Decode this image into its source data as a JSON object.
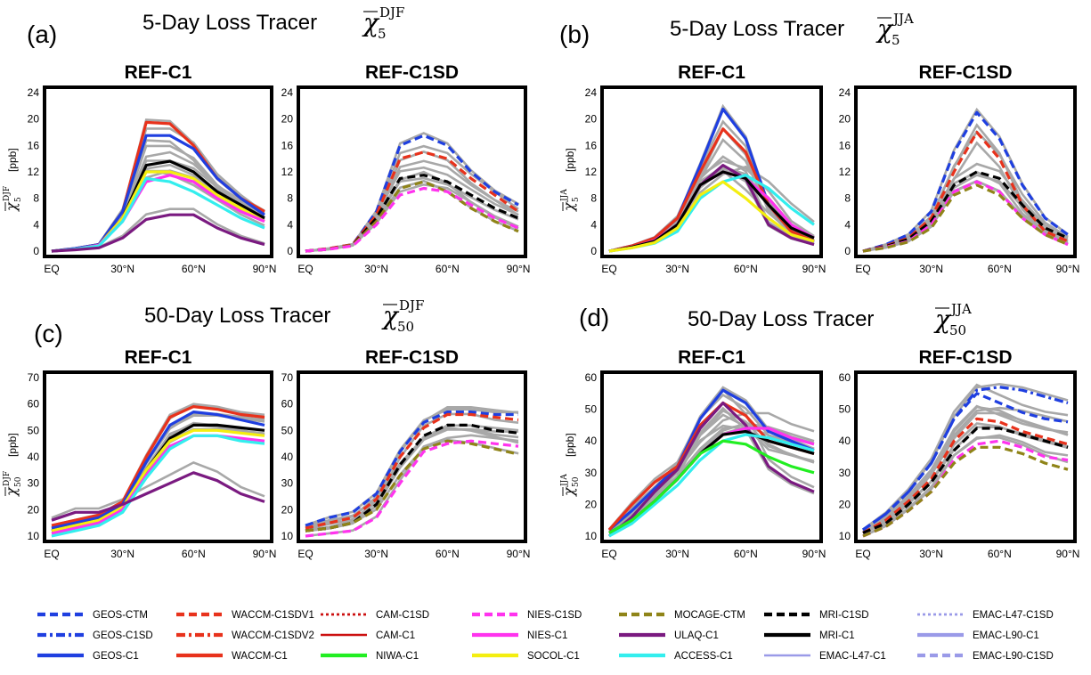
{
  "x_ticks": [
    "EQ",
    "30°N",
    "60°N",
    "90°N"
  ],
  "unit_label": "[ppb]",
  "panels": [
    {
      "letter": "(a)",
      "title_text": "5-Day Loss Tracer",
      "symbol": {
        "base": "χ",
        "sub": "5",
        "sup": "DJF"
      },
      "subpanels": [
        {
          "title": "REF-C1",
          "ylim": [
            0,
            24
          ],
          "yticks": [
            "0",
            "4",
            "8",
            "12",
            "16",
            "20",
            "24"
          ],
          "show_ylabel": true
        },
        {
          "title": "REF-C1SD",
          "ylim": [
            0,
            24
          ],
          "yticks": [
            "0",
            "4",
            "8",
            "12",
            "16",
            "20",
            "24"
          ],
          "show_ylabel": false
        }
      ]
    },
    {
      "letter": "(b)",
      "title_text": "5-Day Loss Tracer",
      "symbol": {
        "base": "χ",
        "sub": "5",
        "sup": "JJA"
      },
      "subpanels": [
        {
          "title": "REF-C1",
          "ylim": [
            0,
            24
          ],
          "yticks": [
            "0",
            "4",
            "8",
            "12",
            "16",
            "20",
            "24"
          ],
          "show_ylabel": true
        },
        {
          "title": "REF-C1SD",
          "ylim": [
            0,
            24
          ],
          "yticks": [
            "0",
            "4",
            "8",
            "12",
            "16",
            "20",
            "24"
          ],
          "show_ylabel": false
        }
      ]
    },
    {
      "letter": "(c)",
      "title_text": "50-Day Loss Tracer",
      "symbol": {
        "base": "χ",
        "sub": "50",
        "sup": "DJF"
      },
      "subpanels": [
        {
          "title": "REF-C1",
          "ylim": [
            10,
            70
          ],
          "yticks": [
            "10",
            "20",
            "30",
            "40",
            "50",
            "60",
            "70"
          ],
          "show_ylabel": true
        },
        {
          "title": "REF-C1SD",
          "ylim": [
            10,
            70
          ],
          "yticks": [
            "10",
            "20",
            "30",
            "40",
            "50",
            "60",
            "70"
          ],
          "show_ylabel": false
        }
      ]
    },
    {
      "letter": "(d)",
      "title_text": "50-Day Loss Tracer",
      "symbol": {
        "base": "χ",
        "sub": "50",
        "sup": "JJA"
      },
      "subpanels": [
        {
          "title": "REF-C1",
          "ylim": [
            10,
            60
          ],
          "yticks": [
            "10",
            "20",
            "30",
            "40",
            "50",
            "60"
          ],
          "show_ylabel": true
        },
        {
          "title": "REF-C1SD",
          "ylim": [
            10,
            60
          ],
          "yticks": [
            "10",
            "20",
            "30",
            "40",
            "50",
            "60"
          ],
          "show_ylabel": false
        }
      ]
    }
  ],
  "legend": [
    {
      "name": "GEOS-CTM",
      "color": "#1f3fe0",
      "style": "dash"
    },
    {
      "name": "GEOS-C1SD",
      "color": "#1f3fe0",
      "style": "dashdot"
    },
    {
      "name": "GEOS-C1",
      "color": "#1f3fe0",
      "style": "solid"
    },
    {
      "name": "WACCM-C1SDV1",
      "color": "#e8321c",
      "style": "dash"
    },
    {
      "name": "WACCM-C1SDV2",
      "color": "#e8321c",
      "style": "dashdot"
    },
    {
      "name": "WACCM-C1",
      "color": "#e8321c",
      "style": "solid"
    },
    {
      "name": "CAM-C1SD",
      "color": "#cc1010",
      "style": "dot"
    },
    {
      "name": "CAM-C1",
      "color": "#cc1010",
      "style": "thin"
    },
    {
      "name": "NIWA-C1",
      "color": "#22ee22",
      "style": "solid"
    },
    {
      "name": "NIES-C1SD",
      "color": "#ff33ee",
      "style": "dash"
    },
    {
      "name": "NIES-C1",
      "color": "#ff33ee",
      "style": "solid"
    },
    {
      "name": "SOCOL-C1",
      "color": "#f4ee10",
      "style": "solid"
    },
    {
      "name": "MOCAGE-CTM",
      "color": "#8f8418",
      "style": "dash"
    },
    {
      "name": "ULAQ-C1",
      "color": "#7a1a80",
      "style": "solid"
    },
    {
      "name": "ACCESS-C1",
      "color": "#33eeee",
      "style": "solid"
    },
    {
      "name": "MRI-C1SD",
      "color": "#000000",
      "style": "dash"
    },
    {
      "name": "MRI-C1",
      "color": "#000000",
      "style": "solid"
    },
    {
      "name": "EMAC-L47-C1",
      "color": "#9a9ae8",
      "style": "thin"
    },
    {
      "name": "EMAC-L47-C1SD",
      "color": "#9a9ae8",
      "style": "dot"
    },
    {
      "name": "EMAC-L90-C1",
      "color": "#9a9ae8",
      "style": "solid"
    },
    {
      "name": "EMAC-L90-C1SD",
      "color": "#9a9ae8",
      "style": "dash"
    }
  ],
  "chart_data": [
    {
      "type": "line",
      "title": "REF-C1",
      "xlabel": "",
      "ylabel": "[ppb]",
      "x": [
        0,
        10,
        20,
        30,
        40,
        50,
        60,
        70,
        80,
        90
      ],
      "ylim": [
        0,
        24
      ],
      "series": [
        {
          "name": "WACCM-C1",
          "values": [
            0,
            0.4,
            1,
            6,
            19.5,
            19.3,
            16,
            11,
            8,
            6
          ]
        },
        {
          "name": "GEOS-C1",
          "values": [
            0,
            0.4,
            1,
            6,
            17.5,
            17.5,
            15.5,
            11,
            8,
            5.5
          ]
        },
        {
          "name": "MRI-C1",
          "values": [
            0,
            0.3,
            0.9,
            5,
            13,
            13.6,
            12,
            9,
            7,
            5
          ]
        },
        {
          "name": "SOCOL-C1",
          "values": [
            0,
            0.3,
            0.9,
            5,
            12,
            12,
            11,
            8.5,
            6.5,
            4.5
          ]
        },
        {
          "name": "NIES-C1",
          "values": [
            0,
            0.3,
            0.9,
            4.5,
            10.5,
            11.5,
            10.5,
            8,
            6,
            4.5
          ]
        },
        {
          "name": "ACCESS-C1",
          "values": [
            0,
            0.3,
            0.8,
            4.5,
            11,
            10.5,
            9,
            7,
            5,
            3.5
          ]
        },
        {
          "name": "ULAQ-C1",
          "values": [
            0,
            0.2,
            0.5,
            2,
            4.8,
            5.5,
            5.5,
            3.5,
            2,
            1
          ]
        }
      ]
    },
    {
      "type": "line",
      "title": "REF-C1SD",
      "xlabel": "",
      "ylabel": "",
      "x": [
        0,
        10,
        20,
        30,
        40,
        50,
        60,
        70,
        80,
        90
      ],
      "ylim": [
        0,
        24
      ],
      "series": [
        {
          "name": "GEOS-CTM",
          "values": [
            0,
            0.4,
            1,
            6,
            16,
            17.5,
            16,
            12,
            9,
            7
          ]
        },
        {
          "name": "WACCM-C1SDV1",
          "values": [
            0,
            0.4,
            1,
            5.5,
            14,
            15,
            14,
            11,
            8.5,
            6
          ]
        },
        {
          "name": "MRI-C1SD",
          "values": [
            0,
            0.3,
            0.9,
            5,
            11,
            11.5,
            10.5,
            8.5,
            6.5,
            5
          ]
        },
        {
          "name": "MOCAGE-CTM",
          "values": [
            0,
            0.3,
            0.9,
            4.5,
            9.5,
            10.5,
            9,
            6.5,
            4.5,
            3
          ]
        },
        {
          "name": "NIES-C1SD",
          "values": [
            0,
            0.3,
            0.8,
            4,
            8.5,
            9.5,
            9,
            7,
            5,
            3.5
          ]
        }
      ]
    },
    {
      "type": "line",
      "title": "REF-C1",
      "xlabel": "",
      "ylabel": "[ppb]",
      "x": [
        0,
        10,
        20,
        30,
        40,
        50,
        60,
        70,
        80,
        90
      ],
      "ylim": [
        0,
        24
      ],
      "series": [
        {
          "name": "GEOS-C1",
          "values": [
            0,
            0.8,
            2,
            5,
            13,
            21.5,
            17,
            7,
            3,
            1.5
          ]
        },
        {
          "name": "WACCM-C1",
          "values": [
            0,
            0.8,
            2,
            5,
            12,
            18.5,
            15,
            7,
            3,
            1.5
          ]
        },
        {
          "name": "ULAQ-C1",
          "values": [
            0,
            0.6,
            1.6,
            4,
            10,
            13,
            11,
            4,
            2,
            1
          ]
        },
        {
          "name": "NIES-C1",
          "values": [
            0,
            0.6,
            1.6,
            4,
            10,
            12,
            11,
            8,
            4,
            2
          ]
        },
        {
          "name": "MRI-C1",
          "values": [
            0,
            0.6,
            1.5,
            4,
            10,
            12,
            11,
            7,
            3.5,
            2
          ]
        },
        {
          "name": "ACCESS-C1",
          "values": [
            0,
            0.5,
            1.2,
            3,
            8,
            10.5,
            11.5,
            9.5,
            6.5,
            4
          ]
        },
        {
          "name": "SOCOL-C1",
          "values": [
            0,
            0.5,
            1.3,
            3.5,
            8.5,
            10.5,
            8,
            5,
            2.5,
            1.5
          ]
        }
      ]
    },
    {
      "type": "line",
      "title": "REF-C1SD",
      "xlabel": "",
      "ylabel": "",
      "x": [
        0,
        10,
        20,
        30,
        40,
        50,
        60,
        70,
        80,
        90
      ],
      "ylim": [
        0,
        24
      ],
      "series": [
        {
          "name": "GEOS-CTM",
          "values": [
            0,
            1,
            2.5,
            6,
            15,
            21,
            17,
            10,
            5,
            2.5
          ]
        },
        {
          "name": "WACCM-C1SDV1",
          "values": [
            0,
            0.8,
            2,
            5,
            12,
            18,
            14,
            7,
            3,
            1.5
          ]
        },
        {
          "name": "MRI-C1SD",
          "values": [
            0,
            0.7,
            1.8,
            4.5,
            10,
            12,
            11,
            7,
            3.5,
            2
          ]
        },
        {
          "name": "NIES-C1SD",
          "values": [
            0,
            0.6,
            1.5,
            4,
            9,
            10.5,
            9,
            5,
            2.5,
            1
          ]
        },
        {
          "name": "MOCAGE-CTM",
          "values": [
            0,
            0.5,
            1.4,
            3.5,
            8.5,
            10,
            8.5,
            5,
            2.5,
            1
          ]
        }
      ]
    },
    {
      "type": "line",
      "title": "REF-C1",
      "xlabel": "",
      "ylabel": "[ppb]",
      "x": [
        0,
        10,
        20,
        30,
        40,
        50,
        60,
        70,
        80,
        90
      ],
      "ylim": [
        10,
        70
      ],
      "series": [
        {
          "name": "WACCM-C1",
          "values": [
            14,
            16,
            18,
            23,
            40,
            55,
            59,
            58,
            56,
            55
          ]
        },
        {
          "name": "GEOS-C1",
          "values": [
            13,
            15,
            17,
            22,
            38,
            52,
            57,
            56,
            54,
            52
          ]
        },
        {
          "name": "MRI-C1",
          "values": [
            12,
            14,
            16,
            21,
            35,
            47,
            52,
            52,
            51,
            50
          ]
        },
        {
          "name": "SOCOL-C1",
          "values": [
            12,
            14,
            16,
            21,
            35,
            46,
            50,
            50,
            49,
            48
          ]
        },
        {
          "name": "NIES-C1",
          "values": [
            11,
            13,
            15,
            20,
            33,
            44,
            48,
            48,
            47,
            46
          ]
        },
        {
          "name": "ACCESS-C1",
          "values": [
            10,
            12,
            14,
            19,
            32,
            43,
            48,
            48,
            46,
            45
          ]
        },
        {
          "name": "ULAQ-C1",
          "values": [
            16,
            19,
            19,
            22,
            26,
            30,
            34,
            31,
            26,
            23
          ]
        }
      ]
    },
    {
      "type": "line",
      "title": "REF-C1SD",
      "xlabel": "",
      "ylabel": "",
      "x": [
        0,
        10,
        20,
        30,
        40,
        50,
        60,
        70,
        80,
        90
      ],
      "ylim": [
        10,
        70
      ],
      "series": [
        {
          "name": "GEOS-CTM",
          "values": [
            14,
            17,
            19,
            26,
            42,
            53,
            57,
            57,
            56,
            56
          ]
        },
        {
          "name": "WACCM-C1SDV1",
          "values": [
            13,
            15,
            17,
            24,
            40,
            51,
            56,
            56,
            55,
            54
          ]
        },
        {
          "name": "MRI-C1SD",
          "values": [
            12,
            13,
            15,
            22,
            37,
            48,
            52,
            52,
            50,
            49
          ]
        },
        {
          "name": "MOCAGE-CTM",
          "values": [
            12,
            13,
            15,
            20,
            33,
            43,
            46,
            45,
            43,
            41
          ]
        },
        {
          "name": "NIES-C1SD",
          "values": [
            10,
            11,
            12,
            17,
            30,
            42,
            45,
            46,
            45,
            44
          ]
        }
      ]
    },
    {
      "type": "line",
      "title": "REF-C1",
      "xlabel": "",
      "ylabel": "[ppb]",
      "x": [
        0,
        10,
        20,
        30,
        40,
        50,
        60,
        70,
        80,
        90
      ],
      "ylim": [
        10,
        60
      ],
      "series": [
        {
          "name": "GEOS-C1",
          "values": [
            12,
            18,
            25,
            32,
            47,
            56,
            52,
            43,
            40,
            37
          ]
        },
        {
          "name": "WACCM-C1",
          "values": [
            12,
            20,
            27,
            32,
            45,
            52,
            48,
            40,
            38,
            36
          ]
        },
        {
          "name": "ULAQ-C1",
          "values": [
            10,
            16,
            24,
            31,
            44,
            52,
            45,
            32,
            27,
            24
          ]
        },
        {
          "name": "NIES-C1",
          "values": [
            11,
            15,
            21,
            28,
            36,
            42,
            44,
            44,
            41,
            39
          ]
        },
        {
          "name": "MRI-C1",
          "values": [
            11,
            15,
            21,
            28,
            36,
            42,
            43,
            40,
            38,
            36
          ]
        },
        {
          "name": "ACCESS-C1",
          "values": [
            10,
            14,
            20,
            26,
            34,
            40,
            42,
            41,
            39,
            37
          ]
        },
        {
          "name": "NIWA-C1",
          "values": [
            11,
            15,
            21,
            28,
            36,
            40,
            39,
            35,
            32,
            30
          ]
        }
      ]
    },
    {
      "type": "line",
      "title": "REF-C1SD",
      "xlabel": "",
      "ylabel": "",
      "x": [
        0,
        10,
        20,
        30,
        40,
        50,
        60,
        70,
        80,
        90
      ],
      "ylim": [
        10,
        60
      ],
      "series": [
        {
          "name": "GEOS-C1SD",
          "values": [
            12,
            17,
            24,
            33,
            47,
            56,
            57,
            56,
            54,
            52
          ]
        },
        {
          "name": "GEOS-CTM",
          "values": [
            12,
            17,
            24,
            33,
            47,
            55,
            52,
            49,
            47,
            46
          ]
        },
        {
          "name": "WACCM-C1SDV1",
          "values": [
            11,
            15,
            21,
            28,
            40,
            47,
            46,
            43,
            41,
            39
          ]
        },
        {
          "name": "MRI-C1SD",
          "values": [
            11,
            14,
            20,
            27,
            37,
            44,
            44,
            42,
            40,
            38
          ]
        },
        {
          "name": "NIES-C1SD",
          "values": [
            10,
            13,
            18,
            24,
            34,
            39,
            40,
            38,
            35,
            34
          ]
        },
        {
          "name": "MOCAGE-CTM",
          "values": [
            10,
            13,
            18,
            24,
            33,
            38,
            38,
            36,
            33,
            31
          ]
        }
      ]
    }
  ]
}
